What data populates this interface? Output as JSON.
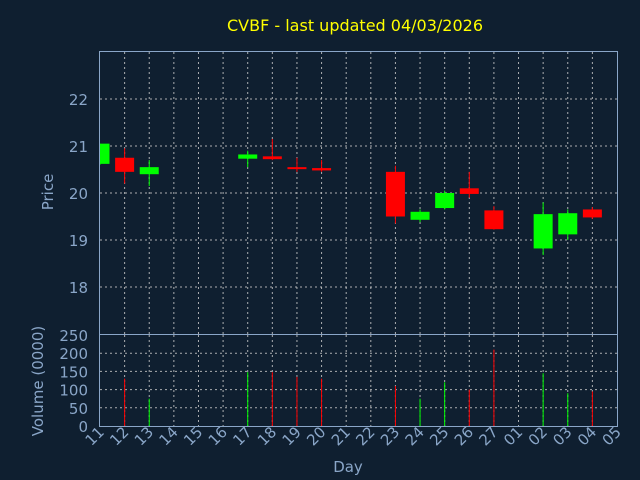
{
  "title": "CVBF - last updated 04/03/2026",
  "colors": {
    "up": "#00ff00",
    "down": "#ff0000",
    "text": "#8aa6c8",
    "title": "#ffff00",
    "background": "#0f1f30"
  },
  "chart_data": [
    {
      "type": "candlestick",
      "ylabel": "Price",
      "ylim": [
        17,
        23
      ],
      "yticks": [
        18,
        19,
        20,
        21,
        22
      ],
      "grid": true,
      "candles": [
        {
          "day": "11",
          "open": 20.62,
          "high": 21.05,
          "low": 20.6,
          "close": 21.05
        },
        {
          "day": "12",
          "open": 20.75,
          "high": 20.95,
          "low": 20.2,
          "close": 20.45
        },
        {
          "day": "13",
          "open": 20.4,
          "high": 20.7,
          "low": 20.15,
          "close": 20.55
        },
        {
          "day": "17",
          "open": 20.73,
          "high": 20.9,
          "low": 20.55,
          "close": 20.82
        },
        {
          "day": "18",
          "open": 20.78,
          "high": 21.15,
          "low": 20.7,
          "close": 20.72
        },
        {
          "day": "19",
          "open": 20.55,
          "high": 20.75,
          "low": 20.45,
          "close": 20.53
        },
        {
          "day": "20",
          "open": 20.53,
          "high": 20.7,
          "low": 20.45,
          "close": 20.48
        },
        {
          "day": "23",
          "open": 20.45,
          "high": 20.58,
          "low": 19.35,
          "close": 19.5
        },
        {
          "day": "24",
          "open": 19.43,
          "high": 19.65,
          "low": 19.38,
          "close": 19.6
        },
        {
          "day": "25",
          "open": 19.68,
          "high": 20.05,
          "low": 19.65,
          "close": 20.0
        },
        {
          "day": "26",
          "open": 20.1,
          "high": 20.45,
          "low": 19.9,
          "close": 19.98
        },
        {
          "day": "27",
          "open": 19.63,
          "high": 19.72,
          "low": 19.22,
          "close": 19.23
        },
        {
          "day": "02",
          "open": 18.82,
          "high": 19.8,
          "low": 18.68,
          "close": 19.55
        },
        {
          "day": "03",
          "open": 19.12,
          "high": 19.65,
          "low": 19.0,
          "close": 19.57
        },
        {
          "day": "04",
          "open": 19.65,
          "high": 19.7,
          "low": 19.45,
          "close": 19.48
        }
      ]
    },
    {
      "type": "bar",
      "ylabel": "Volume (0000)",
      "xlabel": "Day",
      "ylim": [
        0,
        250
      ],
      "yticks": [
        0,
        50,
        100,
        150,
        200,
        250
      ],
      "grid": true,
      "categories": [
        "11",
        "12",
        "13",
        "14",
        "15",
        "16",
        "17",
        "18",
        "19",
        "20",
        "21",
        "22",
        "23",
        "24",
        "25",
        "26",
        "27",
        "01",
        "02",
        "03",
        "04",
        "05"
      ],
      "values": [
        {
          "day": "12",
          "value": 130,
          "direction": "down"
        },
        {
          "day": "13",
          "value": 75,
          "direction": "up"
        },
        {
          "day": "17",
          "value": 148,
          "direction": "up"
        },
        {
          "day": "18",
          "value": 148,
          "direction": "down"
        },
        {
          "day": "19",
          "value": 135,
          "direction": "down"
        },
        {
          "day": "20",
          "value": 130,
          "direction": "down"
        },
        {
          "day": "23",
          "value": 110,
          "direction": "down"
        },
        {
          "day": "24",
          "value": 75,
          "direction": "up"
        },
        {
          "day": "25",
          "value": 120,
          "direction": "up"
        },
        {
          "day": "26",
          "value": 100,
          "direction": "down"
        },
        {
          "day": "27",
          "value": 210,
          "direction": "down"
        },
        {
          "day": "02",
          "value": 145,
          "direction": "up"
        },
        {
          "day": "03",
          "value": 90,
          "direction": "up"
        },
        {
          "day": "04",
          "value": 95,
          "direction": "down"
        }
      ]
    }
  ]
}
